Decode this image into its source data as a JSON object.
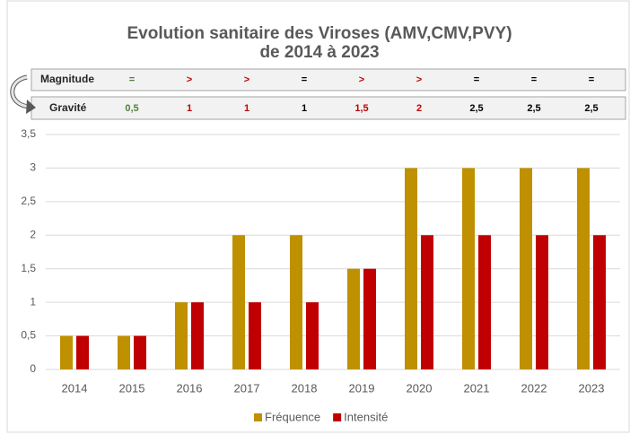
{
  "chart_data": {
    "type": "bar",
    "title": "Evolution sanitaire des Viroses (AMV,CMV,PVY)",
    "subtitle": "de 2014 à 2023",
    "categories": [
      "2014",
      "2015",
      "2016",
      "2017",
      "2018",
      "2019",
      "2020",
      "2021",
      "2022",
      "2023"
    ],
    "series": [
      {
        "name": "Fréquence",
        "color": "#bf9000",
        "values": [
          0.5,
          0.5,
          1,
          2,
          2,
          1.5,
          3,
          3,
          3,
          3
        ]
      },
      {
        "name": "Intensité",
        "color": "#c00000",
        "values": [
          0.5,
          0.5,
          1,
          1,
          1,
          1.5,
          2,
          2,
          2,
          2
        ]
      }
    ],
    "ylim": [
      0,
      3.5
    ],
    "yticks": [
      0,
      {
        "value": 0.5,
        "label": "0,5"
      },
      1,
      {
        "value": 1.5,
        "label": "1,5"
      },
      2,
      {
        "value": 2.5,
        "label": "2,5"
      },
      3,
      {
        "value": 3.5,
        "label": "3,5"
      }
    ],
    "grid": true,
    "legend": "bottom",
    "magnitude": {
      "label": "Magnitude",
      "values": [
        "=",
        ">",
        ">",
        "=",
        ">",
        ">",
        "=",
        "=",
        "="
      ],
      "colors": [
        "#548235",
        "#c00000",
        "#c00000",
        "#000000",
        "#c00000",
        "#c00000",
        "#000000",
        "#000000",
        "#000000"
      ]
    },
    "gravite": {
      "label": "Gravité",
      "values": [
        "0,5",
        "1",
        "1",
        "1",
        "1,5",
        "2",
        "2,5",
        "2,5",
        "2,5"
      ],
      "colors": [
        "#548235",
        "#c00000",
        "#c00000",
        "#000000",
        "#c00000",
        "#c00000",
        "#000000",
        "#000000",
        "#000000"
      ]
    }
  }
}
